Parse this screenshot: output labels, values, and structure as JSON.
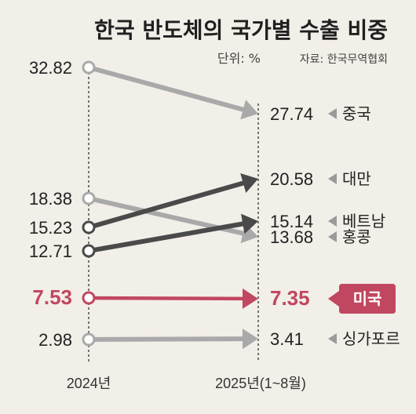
{
  "header": {
    "title": "한국 반도체의 국가별 수출 비중",
    "unit": "단위: %",
    "source": "자료: 한국무역협회"
  },
  "chart_data": {
    "type": "line",
    "title": "한국 반도체의 국가별 수출 비중",
    "x": [
      "2024년",
      "2025년(1~8월)"
    ],
    "unit": "%",
    "series": [
      {
        "name": "중국",
        "values": [
          32.82,
          27.74
        ],
        "label_start": "32.82",
        "label_end": "27.74",
        "color": "#a9a9a9"
      },
      {
        "name": "홍콩",
        "values": [
          18.38,
          13.68
        ],
        "label_start": "18.38",
        "label_end": "13.68",
        "color": "#a9a9a9"
      },
      {
        "name": "대만",
        "values": [
          15.23,
          20.58
        ],
        "label_start": "15.23",
        "label_end": "20.58",
        "color": "#4a4a4a"
      },
      {
        "name": "베트남",
        "values": [
          12.71,
          15.14
        ],
        "label_start": "12.71",
        "label_end": "15.14",
        "color": "#4a4a4a"
      },
      {
        "name": "미국",
        "values": [
          7.53,
          7.35
        ],
        "label_start": "7.53",
        "label_end": "7.35",
        "color": "#c0475f",
        "highlight": true
      },
      {
        "name": "싱가포르",
        "values": [
          2.98,
          3.41
        ],
        "label_start": "2.98",
        "label_end": "3.41",
        "color": "#a9a9a9"
      }
    ]
  },
  "colors": {
    "background": "#f2eee8",
    "highlight": "#c0475f",
    "dark": "#4a4a4a",
    "light": "#a9a9a9",
    "pointer": "#9a9a9a"
  }
}
